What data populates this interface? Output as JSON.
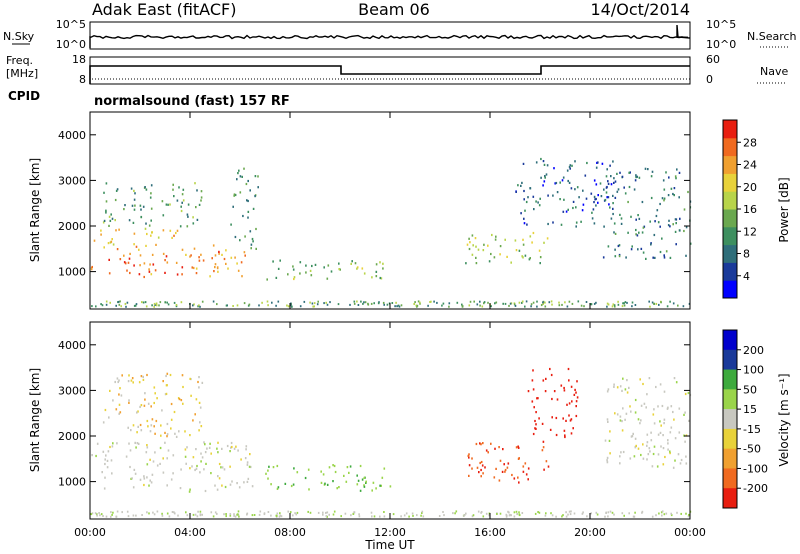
{
  "header": {
    "station": "Adak East (fitACF)",
    "beam": "Beam 06",
    "date": "14/Oct/2014"
  },
  "noise_panel": {
    "left_label": "N.Sky",
    "right_label": "N.Search",
    "left_ticks": [
      "10^5",
      "10^0"
    ],
    "right_ticks": [
      "10^5",
      "10^0"
    ]
  },
  "freq_panel": {
    "left_label_line1": "Freq.",
    "left_label_line2": "[MHz]",
    "right_label": "Nave",
    "left_ticks": [
      "18",
      "8"
    ],
    "right_ticks": [
      "60",
      "0"
    ]
  },
  "cpid": {
    "label": "CPID",
    "text": "normalsound (fast) 157 RF"
  },
  "colors": {
    "power_scale": [
      "#0000ff",
      "#1a3a9a",
      "#2f6e7a",
      "#3d8f5f",
      "#6aa84f",
      "#b8d44a",
      "#e8d23a",
      "#f0a030",
      "#f06a20",
      "#e81e10"
    ],
    "velocity_scale": [
      "#e81e10",
      "#f06a20",
      "#f0a030",
      "#e8d23a",
      "#c8c8c0",
      "#c8c8c0",
      "#9ad44a",
      "#3daa3d",
      "#2f6e7a",
      "#1a3a9a",
      "#0000cc"
    ]
  },
  "chart_data": [
    {
      "type": "heatmap",
      "panel": "power",
      "ylabel": "Slant Range [km]",
      "ylim": [
        180,
        4500
      ],
      "yticks": [
        "1000",
        "2000",
        "3000",
        "4000"
      ],
      "xlim_hours": [
        0,
        24
      ],
      "xticks": [
        "00:00",
        "04:00",
        "08:00",
        "12:00",
        "16:00",
        "20:00",
        "00:00"
      ],
      "colorbar": {
        "label": "Power [dB]",
        "range": [
          0,
          32
        ],
        "ticks": [
          "4",
          "8",
          "12",
          "16",
          "20",
          "24",
          "28"
        ]
      },
      "regions": [
        {
          "t": [
            0.0,
            6.2
          ],
          "r": [
            900,
            1600
          ],
          "value": 25
        },
        {
          "t": [
            0.0,
            3.5
          ],
          "r": [
            1600,
            2000
          ],
          "value": 22
        },
        {
          "t": [
            0.5,
            4.5
          ],
          "r": [
            2000,
            3000
          ],
          "value": 12
        },
        {
          "t": [
            5.6,
            6.7
          ],
          "r": [
            1500,
            3300
          ],
          "value": 10
        },
        {
          "t": [
            7.0,
            12.0
          ],
          "r": [
            850,
            1300
          ],
          "value": 15
        },
        {
          "t": [
            15.0,
            18.5
          ],
          "r": [
            1200,
            1900
          ],
          "value": 17
        },
        {
          "t": [
            17.0,
            21.0
          ],
          "r": [
            2000,
            3500
          ],
          "value": 7
        },
        {
          "t": [
            20.5,
            24.0
          ],
          "r": [
            1300,
            3300
          ],
          "value": 9
        }
      ]
    },
    {
      "type": "heatmap",
      "panel": "velocity",
      "ylabel": "Slant Range [km]",
      "ylim": [
        180,
        4500
      ],
      "yticks": [
        "1000",
        "2000",
        "3000",
        "4000"
      ],
      "xlabel": "Time UT",
      "xlim_hours": [
        0,
        24
      ],
      "xticks": [
        "00:00",
        "04:00",
        "08:00",
        "12:00",
        "16:00",
        "20:00",
        "00:00"
      ],
      "colorbar": {
        "label": "Velocity [m s⁻¹]",
        "ticks": [
          "200",
          "100",
          "50",
          "15",
          "-15",
          "-50",
          "-100",
          "-200"
        ]
      },
      "regions": [
        {
          "t": [
            0.0,
            6.5
          ],
          "r": [
            800,
            1900
          ],
          "value": 0
        },
        {
          "t": [
            0.5,
            4.5
          ],
          "r": [
            2000,
            3400
          ],
          "value": -20
        },
        {
          "t": [
            7.0,
            12.0
          ],
          "r": [
            800,
            1400
          ],
          "value": 40
        },
        {
          "t": [
            15.0,
            18.5
          ],
          "r": [
            1000,
            1900
          ],
          "value": -150
        },
        {
          "t": [
            17.5,
            19.5
          ],
          "r": [
            2000,
            3500
          ],
          "value": -200
        },
        {
          "t": [
            20.5,
            24.0
          ],
          "r": [
            1300,
            3300
          ],
          "value": 0
        }
      ]
    }
  ]
}
